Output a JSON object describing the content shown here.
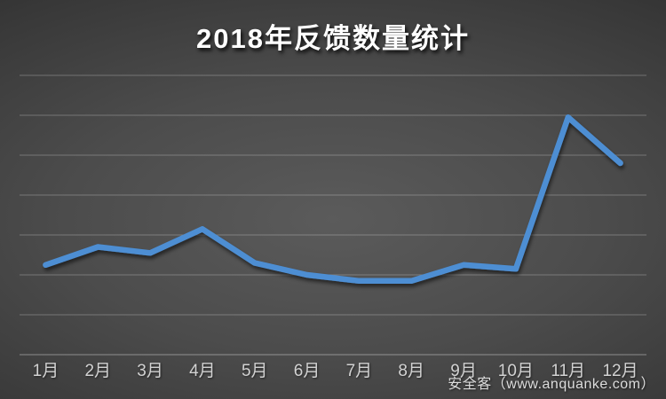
{
  "title": "2018年反馈数量统计",
  "watermark": {
    "text": "安全客（www.anquanke.com）"
  },
  "colors": {
    "line": "#4d8ed3",
    "line_shadow": "#000000",
    "background_center": "#5b5b5b",
    "background_edge": "#242424",
    "gridline": "#9a9a9a",
    "axis_line": "#a8a8a8",
    "month_label": "#d2d2d2",
    "title_text": "#ffffff",
    "watermark_text": "#dddddd"
  },
  "chart_data": {
    "type": "line",
    "title": "2018年反馈数量统计",
    "xlabel": "",
    "ylabel": "",
    "categories": [
      "1月",
      "2月",
      "3月",
      "4月",
      "5月",
      "6月",
      "7月",
      "8月",
      "9月",
      "10月",
      "11月",
      "12月"
    ],
    "series": [
      {
        "name": "反馈数量",
        "values": [
          2.25,
          2.7,
          2.55,
          3.15,
          2.3,
          2.0,
          1.85,
          1.85,
          2.25,
          2.15,
          5.95,
          4.8
        ]
      }
    ],
    "ylim": [
      0,
      7
    ],
    "y_tick_labels_visible": false,
    "y_values_estimated_in_gridline_units": true,
    "gridlines": "horizontal",
    "gridline_count": 8,
    "legend": "none"
  }
}
